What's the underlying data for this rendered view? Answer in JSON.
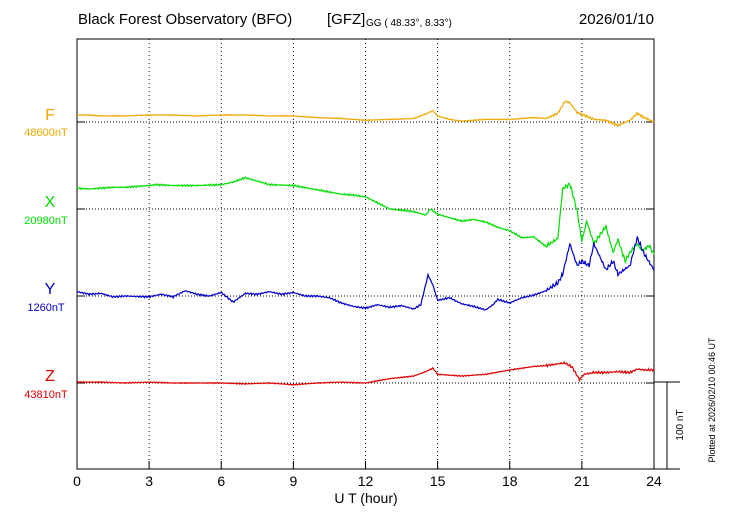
{
  "header": {
    "title": "Black Forest Observatory (BFO)",
    "gfz": "[GFZ]",
    "coords": "GG ( 48.33°,   8.33°)",
    "date": "2026/01/10"
  },
  "footer": {
    "plotted": "Plotted at 2026/02/10 00:46 UT"
  },
  "chart_data": {
    "type": "line",
    "xlabel": "U T (hour)",
    "xlim": [
      0,
      24
    ],
    "xticks": [
      "0",
      "3",
      "6",
      "9",
      "12",
      "15",
      "18",
      "21",
      "24"
    ],
    "scale_bar": {
      "label": "100 nT",
      "value_nT": 100
    },
    "colors": {
      "F": "#f0a800",
      "X": "#00dd00",
      "Y": "#0000cc",
      "Z": "#dd0000"
    },
    "series": [
      {
        "name": "F",
        "baseline_label": "48600nT",
        "baseline": 48600,
        "x": [
          0,
          0.5,
          1,
          2,
          3,
          4,
          5,
          6,
          7,
          8,
          9,
          10,
          11,
          12,
          13,
          14,
          14.5,
          14.8,
          15,
          15.5,
          16,
          17,
          18,
          19,
          19.5,
          20,
          20.3,
          20.5,
          20.8,
          21,
          21.5,
          22,
          22.5,
          23,
          23.3,
          23.6,
          24
        ],
        "y": [
          48608,
          48608,
          48607,
          48607,
          48608,
          48608,
          48607,
          48608,
          48608,
          48607,
          48607,
          48605,
          48604,
          48602,
          48603,
          48604,
          48609,
          48613,
          48607,
          48603,
          48601,
          48603,
          48603,
          48605,
          48604,
          48610,
          48624,
          48622,
          48611,
          48609,
          48603,
          48602,
          48596,
          48602,
          48610,
          48605,
          48600
        ]
      },
      {
        "name": "X",
        "baseline_label": "20980nT",
        "baseline": 20980,
        "x": [
          0,
          0.5,
          1,
          1.5,
          2,
          3,
          3.3,
          4,
          5,
          6,
          6.5,
          7,
          7.5,
          8,
          9,
          10,
          11,
          11.5,
          12,
          13,
          14,
          14.5,
          14.7,
          15,
          15.5,
          16,
          16.5,
          17,
          17.5,
          18,
          18.5,
          19,
          19.5,
          20,
          20.2,
          20.5,
          20.6,
          20.8,
          21,
          21.2,
          21.5,
          22,
          22.3,
          22.5,
          22.8,
          23,
          23.3,
          23.5,
          23.8,
          24
        ],
        "y": [
          21004,
          21003,
          21004,
          21005,
          21005,
          21007,
          21008,
          21007,
          21007,
          21008,
          21011,
          21016,
          21012,
          21008,
          21007,
          21002,
          20997,
          20996,
          20994,
          20980,
          20977,
          20973,
          20980,
          20974,
          20970,
          20966,
          20968,
          20965,
          20959,
          20955,
          20947,
          20948,
          20937,
          20946,
          21003,
          21009,
          20999,
          20978,
          20943,
          20966,
          20940,
          20960,
          20930,
          20945,
          20920,
          20930,
          20940,
          20932,
          20938,
          20928
        ]
      },
      {
        "name": "Y",
        "baseline_label": "1260nT",
        "baseline": 1260,
        "x": [
          0,
          0.5,
          1,
          1.5,
          2,
          3,
          3.5,
          4,
          4.5,
          5,
          5.5,
          6,
          6.5,
          7,
          7.5,
          8,
          8.5,
          9,
          9.5,
          10,
          10.5,
          11,
          11.5,
          12,
          12.5,
          13,
          13.5,
          14,
          14.3,
          14.6,
          14.8,
          15,
          15.5,
          16,
          16.5,
          17,
          17.3,
          17.5,
          18,
          18.5,
          19,
          19.5,
          20,
          20.2,
          20.5,
          20.8,
          21,
          21.3,
          21.5,
          22,
          22.3,
          22.5,
          23,
          23.3,
          23.6,
          24
        ],
        "y": [
          1265,
          1262,
          1263,
          1259,
          1260,
          1259,
          1262,
          1259,
          1266,
          1262,
          1260,
          1264,
          1253,
          1263,
          1262,
          1265,
          1262,
          1264,
          1260,
          1260,
          1258,
          1252,
          1248,
          1246,
          1250,
          1247,
          1249,
          1245,
          1250,
          1284,
          1273,
          1255,
          1258,
          1251,
          1248,
          1244,
          1250,
          1256,
          1252,
          1258,
          1261,
          1266,
          1275,
          1285,
          1320,
          1295,
          1300,
          1295,
          1320,
          1290,
          1300,
          1285,
          1295,
          1327,
          1308,
          1290
        ]
      },
      {
        "name": "Z",
        "baseline_label": "43810nT",
        "baseline": 43810,
        "x": [
          0,
          1,
          2,
          3,
          4,
          5,
          6,
          7,
          8,
          9,
          10,
          11,
          12,
          13,
          14,
          14.5,
          14.8,
          15,
          16,
          17,
          18,
          19,
          19.5,
          20,
          20.3,
          20.6,
          20.9,
          21.1,
          21.5,
          22,
          22.5,
          23,
          23.3,
          23.6,
          24
        ],
        "y": [
          43811,
          43811,
          43810,
          43811,
          43810,
          43810,
          43810,
          43809,
          43810,
          43808,
          43810,
          43811,
          43810,
          43815,
          43818,
          43823,
          43827,
          43820,
          43818,
          43820,
          43825,
          43829,
          43830,
          43832,
          43833,
          43828,
          43814,
          43820,
          43822,
          43822,
          43823,
          43822,
          43826,
          43825,
          43825
        ]
      }
    ]
  }
}
